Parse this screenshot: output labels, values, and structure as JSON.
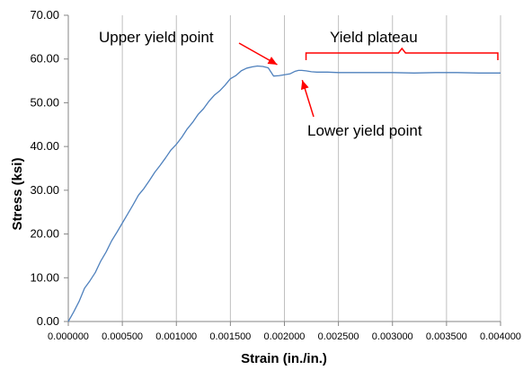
{
  "chart_data": {
    "type": "line",
    "xlabel": "Strain (in./in.)",
    "ylabel": "Stress (ksi)",
    "xlim": [
      0,
      0.004
    ],
    "ylim": [
      0,
      70
    ],
    "x_ticks": [
      "0.000000",
      "0.000500",
      "0.001000",
      "0.001500",
      "0.002000",
      "0.002500",
      "0.003000",
      "0.003500",
      "0.004000"
    ],
    "y_ticks": [
      "0.00",
      "10.00",
      "20.00",
      "30.00",
      "40.00",
      "50.00",
      "60.00",
      "70.00"
    ],
    "grid": "vertical",
    "legend": "none",
    "series": [
      {
        "color": "#4f81bd",
        "x": [
          0,
          5e-05,
          0.0001,
          0.00015,
          0.0002,
          0.00025,
          0.0003,
          0.00035,
          0.0004,
          0.00045,
          0.0005,
          0.00055,
          0.0006,
          0.00065,
          0.0007,
          0.00075,
          0.0008,
          0.00085,
          0.0009,
          0.00095,
          0.001,
          0.00105,
          0.0011,
          0.00115,
          0.0012,
          0.00125,
          0.0013,
          0.00135,
          0.0014,
          0.00145,
          0.0015,
          0.00155,
          0.0016,
          0.00165,
          0.0017,
          0.00175,
          0.0018,
          0.00185,
          0.0019,
          0.00195,
          0.002,
          0.00205,
          0.0021,
          0.00213,
          0.00216,
          0.0022,
          0.00225,
          0.0023,
          0.0024,
          0.0025,
          0.0026,
          0.0028,
          0.003,
          0.0032,
          0.0034,
          0.0036,
          0.0038,
          0.004
        ],
        "y": [
          0,
          2.2,
          4.6,
          7.6,
          9.3,
          11.2,
          13.8,
          15.9,
          18.4,
          20.4,
          22.5,
          24.6,
          26.7,
          28.9,
          30.4,
          32.2,
          34.1,
          35.7,
          37.4,
          39.2,
          40.5,
          42.1,
          44,
          45.5,
          47.3,
          48.6,
          50.3,
          51.7,
          52.7,
          54,
          55.5,
          56.2,
          57.3,
          57.9,
          58.2,
          58.4,
          58.3,
          58,
          56.1,
          56.2,
          56.4,
          56.6,
          57.2,
          57.4,
          57.4,
          57.3,
          57.1,
          57,
          57,
          56.9,
          56.9,
          56.9,
          56.9,
          56.8,
          56.9,
          56.9,
          56.8,
          56.8
        ]
      }
    ],
    "annotations": [
      {
        "text": "Upper yield point",
        "target_x": 0.002,
        "target_y": 58.3
      },
      {
        "text": "Lower yield point",
        "target_x": 0.00214,
        "target_y": 56.0
      },
      {
        "text": "Yield plateau",
        "range_x": [
          0.0022,
          0.004
        ]
      }
    ]
  }
}
